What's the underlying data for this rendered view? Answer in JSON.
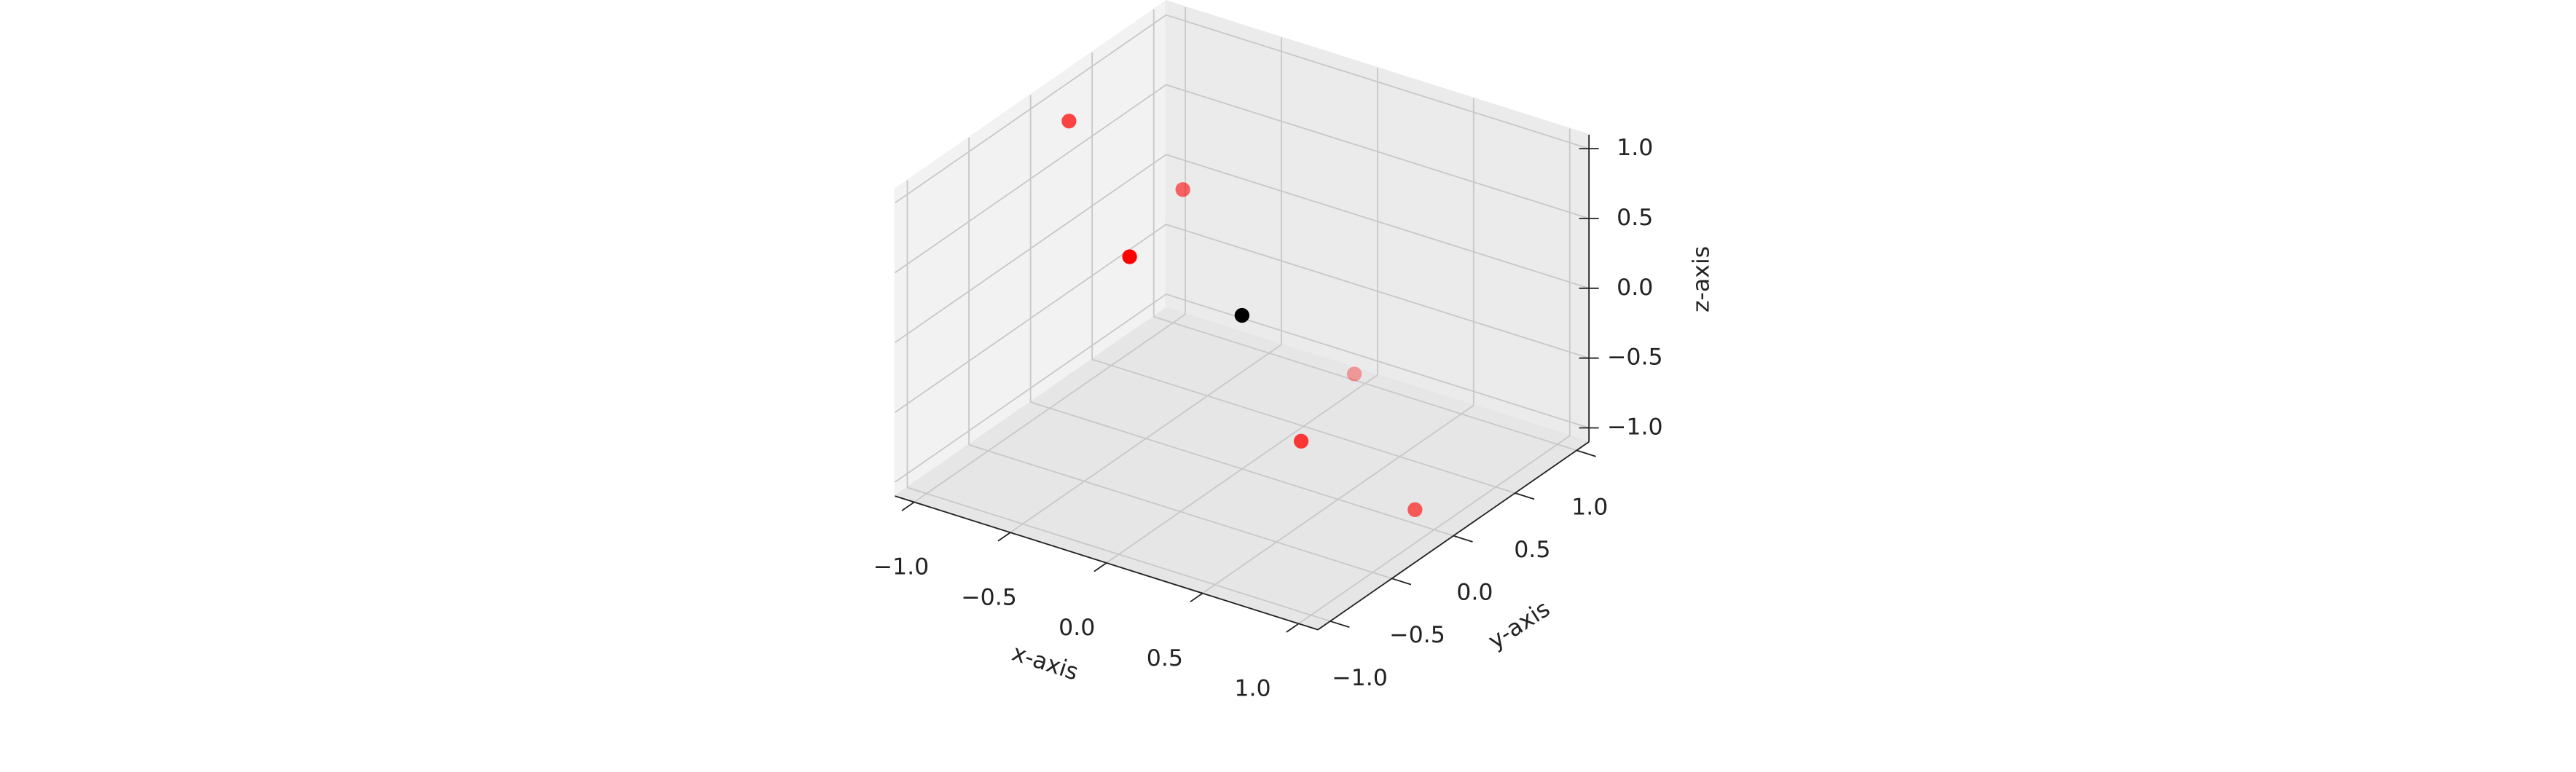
{
  "chart_data": {
    "type": "scatter3d",
    "xlabel": "x-axis",
    "ylabel": "y-axis",
    "zlabel": "z-axis",
    "xlim": [
      -1.1,
      1.1
    ],
    "ylim": [
      -1.1,
      1.1
    ],
    "zlim": [
      -1.1,
      1.1
    ],
    "xticks": [
      {
        "value": -1,
        "label": "−1.0"
      },
      {
        "value": -0.5,
        "label": "−0.5"
      },
      {
        "value": 0,
        "label": "0.0"
      },
      {
        "value": 0.5,
        "label": "0.5"
      },
      {
        "value": 1,
        "label": "1.0"
      }
    ],
    "yticks": [
      {
        "value": -1,
        "label": "−1.0"
      },
      {
        "value": -0.5,
        "label": "−0.5"
      },
      {
        "value": 0,
        "label": "0.0"
      },
      {
        "value": 0.5,
        "label": "0.5"
      },
      {
        "value": 1,
        "label": "1.0"
      }
    ],
    "zticks": [
      {
        "value": -1,
        "label": "−1.0"
      },
      {
        "value": -0.5,
        "label": "−0.5"
      },
      {
        "value": 0,
        "label": "0.0"
      },
      {
        "value": 0.5,
        "label": "0.5"
      },
      {
        "value": 1,
        "label": "1.0"
      }
    ],
    "grid": true,
    "series": [
      {
        "color": "#ff0000",
        "x": [
          0.9,
          -0.9,
          0.5,
          -0.5,
          0.2,
          -0.2
        ],
        "y": [
          0,
          0,
          -0.3,
          0.3,
          0.6,
          -0.6
        ],
        "z": [
          -1,
          1,
          -0.5,
          0.5,
          -0.7,
          0.7
        ]
      },
      {
        "color": "#000000",
        "x": [
          0
        ],
        "y": [
          0
        ],
        "z": [
          0
        ]
      }
    ]
  }
}
